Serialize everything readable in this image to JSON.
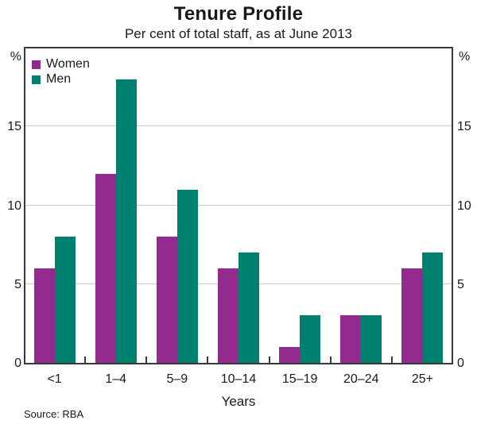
{
  "chart_data": {
    "type": "bar",
    "title": "Tenure Profile",
    "subtitle": "Per cent of total staff, as at June 2013",
    "categories": [
      "<1",
      "1–4",
      "5–9",
      "10–14",
      "15–19",
      "20–24",
      "25+"
    ],
    "series": [
      {
        "name": "Women",
        "color": "#932a8e",
        "values": [
          6,
          12,
          8,
          6,
          1,
          3,
          6
        ]
      },
      {
        "name": "Men",
        "color": "#00806f",
        "values": [
          8,
          18,
          11,
          7,
          3,
          3,
          7
        ]
      }
    ],
    "xlabel": "Years",
    "ylabel": "%",
    "ylim": [
      0,
      20
    ],
    "yticks": [
      0,
      5,
      10,
      15
    ],
    "grid": true,
    "legend_position": "top-left",
    "source": "Source: RBA",
    "colors": {
      "axis": "#3a3a3a",
      "gridline": "#c9c9c9",
      "text": "#1a1a1a",
      "background": "#ffffff"
    }
  }
}
